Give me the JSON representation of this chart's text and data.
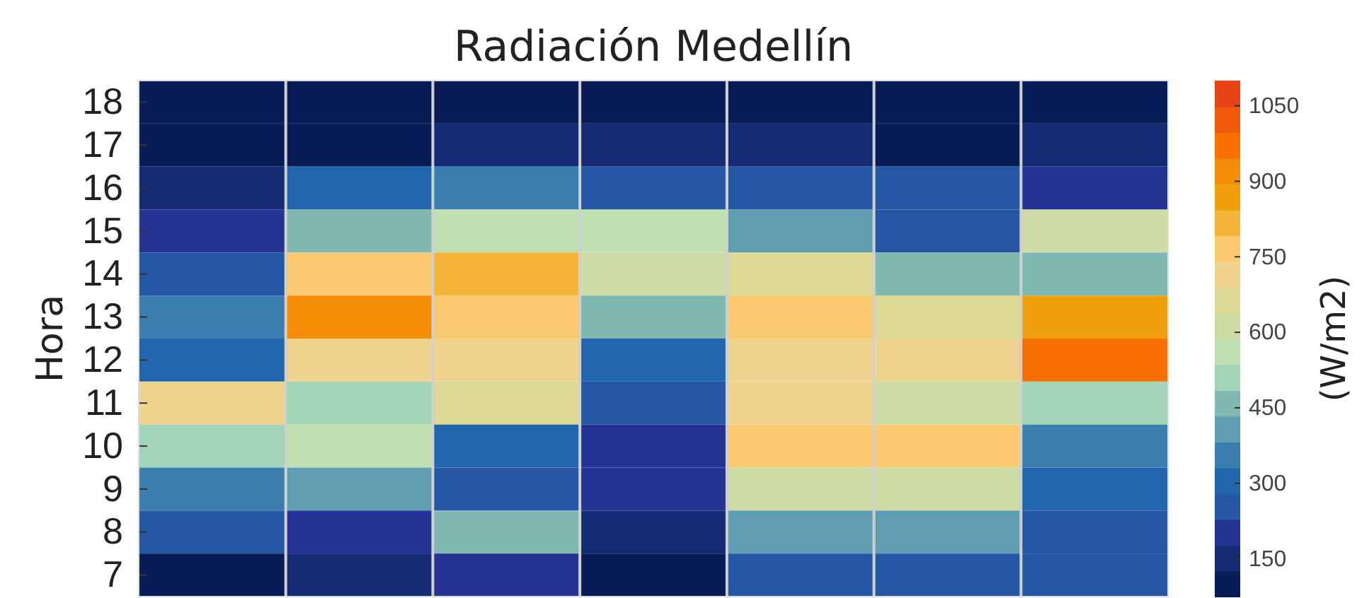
{
  "chart_data": {
    "type": "heatmap",
    "title": "Radiación Medellín",
    "ylabel": "Hora",
    "clabel": "(W/m2)",
    "categories": [
      null,
      null,
      null,
      null,
      null,
      null,
      null
    ],
    "y_categories": [
      "18",
      "17",
      "16",
      "15",
      "14",
      "13",
      "12",
      "11",
      "10",
      "9",
      "8",
      "7"
    ],
    "cells": [
      [
        100,
        100,
        100,
        100,
        100,
        100,
        100
      ],
      [
        100,
        100,
        150,
        150,
        150,
        100,
        150
      ],
      [
        150,
        300,
        350,
        250,
        250,
        250,
        200
      ],
      [
        200,
        450,
        550,
        550,
        400,
        250,
        600
      ],
      [
        250,
        750,
        800,
        600,
        650,
        450,
        450
      ],
      [
        350,
        900,
        750,
        450,
        750,
        650,
        850
      ],
      [
        300,
        700,
        700,
        300,
        700,
        700,
        950
      ],
      [
        700,
        500,
        650,
        250,
        700,
        600,
        500
      ],
      [
        500,
        550,
        300,
        200,
        750,
        750,
        350
      ],
      [
        350,
        400,
        250,
        200,
        600,
        600,
        300
      ],
      [
        250,
        200,
        450,
        150,
        400,
        400,
        250
      ],
      [
        100,
        150,
        200,
        100,
        250,
        250,
        250
      ]
    ],
    "clim": [
      75,
      1100
    ],
    "cticks": [
      150,
      300,
      450,
      600,
      750,
      900,
      1050
    ],
    "tick_labels": "y",
    "grid": true
  }
}
